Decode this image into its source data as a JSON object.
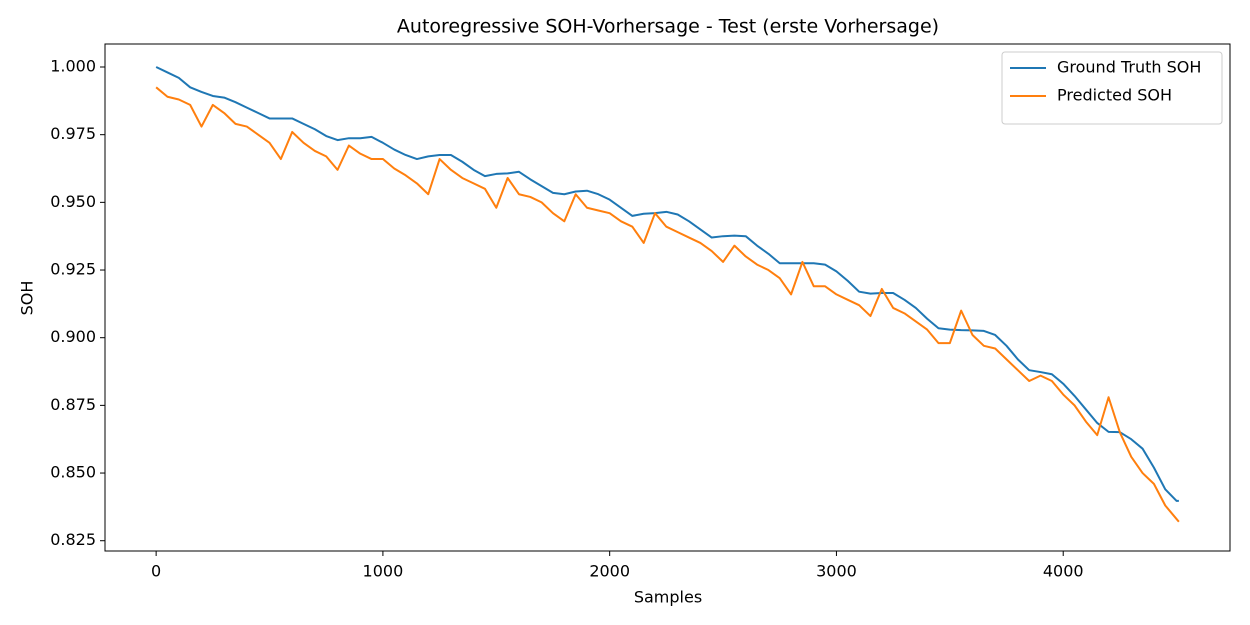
{
  "chart_data": {
    "type": "line",
    "title": "Autoregressive SOH-Vorhersage - Test (erste Vorhersage)",
    "x_label": "Samples",
    "y_label": "SOH",
    "x": [
      0,
      50,
      100,
      150,
      200,
      250,
      300,
      350,
      400,
      450,
      500,
      550,
      600,
      650,
      700,
      750,
      800,
      850,
      900,
      950,
      1000,
      1050,
      1100,
      1150,
      1200,
      1250,
      1300,
      1350,
      1400,
      1450,
      1500,
      1550,
      1600,
      1650,
      1700,
      1750,
      1800,
      1850,
      1900,
      1950,
      2000,
      2050,
      2100,
      2150,
      2200,
      2250,
      2300,
      2350,
      2400,
      2450,
      2500,
      2550,
      2600,
      2650,
      2700,
      2750,
      2800,
      2850,
      2900,
      2950,
      3000,
      3050,
      3100,
      3150,
      3200,
      3250,
      3300,
      3350,
      3400,
      3450,
      3500,
      3550,
      3600,
      3650,
      3700,
      3750,
      3800,
      3850,
      3900,
      3950,
      4000,
      4050,
      4100,
      4150,
      4200,
      4250,
      4300,
      4350,
      4400,
      4450,
      4500,
      4510
    ],
    "series": [
      {
        "name": "Ground Truth SOH",
        "color": "#1f77b4",
        "values": [
          1.0,
          0.998,
          0.996,
          0.9925,
          0.9908,
          0.9893,
          0.9887,
          0.987,
          0.985,
          0.983,
          0.981,
          0.981,
          0.981,
          0.979,
          0.977,
          0.9745,
          0.973,
          0.9737,
          0.9737,
          0.9742,
          0.972,
          0.9695,
          0.9675,
          0.966,
          0.967,
          0.9675,
          0.9675,
          0.965,
          0.962,
          0.9597,
          0.9605,
          0.9607,
          0.9613,
          0.9585,
          0.956,
          0.9535,
          0.953,
          0.954,
          0.9543,
          0.953,
          0.951,
          0.948,
          0.945,
          0.9458,
          0.946,
          0.9465,
          0.9455,
          0.943,
          0.94,
          0.937,
          0.9375,
          0.9377,
          0.9375,
          0.934,
          0.931,
          0.9275,
          0.9275,
          0.9275,
          0.9275,
          0.927,
          0.9245,
          0.921,
          0.917,
          0.9163,
          0.9165,
          0.9165,
          0.914,
          0.911,
          0.907,
          0.9035,
          0.903,
          0.9028,
          0.9027,
          0.9025,
          0.901,
          0.897,
          0.892,
          0.888,
          0.8873,
          0.8865,
          0.883,
          0.8785,
          0.8735,
          0.8685,
          0.8652,
          0.8651,
          0.8625,
          0.859,
          0.852,
          0.844,
          0.8397,
          0.8397
        ]
      },
      {
        "name": "Predicted SOH",
        "color": "#ff7f0e",
        "values": [
          0.9925,
          0.989,
          0.988,
          0.986,
          0.978,
          0.986,
          0.983,
          0.979,
          0.978,
          0.975,
          0.972,
          0.966,
          0.976,
          0.972,
          0.969,
          0.967,
          0.962,
          0.971,
          0.968,
          0.966,
          0.966,
          0.9625,
          0.96,
          0.957,
          0.953,
          0.966,
          0.962,
          0.959,
          0.957,
          0.955,
          0.948,
          0.959,
          0.953,
          0.952,
          0.95,
          0.946,
          0.943,
          0.953,
          0.948,
          0.947,
          0.946,
          0.943,
          0.941,
          0.935,
          0.946,
          0.941,
          0.939,
          0.937,
          0.935,
          0.932,
          0.928,
          0.934,
          0.93,
          0.927,
          0.925,
          0.922,
          0.916,
          0.928,
          0.919,
          0.919,
          0.916,
          0.914,
          0.912,
          0.908,
          0.918,
          0.911,
          0.909,
          0.906,
          0.903,
          0.898,
          0.898,
          0.91,
          0.901,
          0.897,
          0.896,
          0.892,
          0.888,
          0.884,
          0.886,
          0.884,
          0.879,
          0.875,
          0.869,
          0.864,
          0.878,
          0.865,
          0.856,
          0.85,
          0.846,
          0.838,
          0.833,
          0.832
        ]
      }
    ],
    "xlim": [
      -225.5,
      4735.5
    ],
    "xticks": [
      0,
      1000,
      2000,
      3000,
      4000
    ],
    "ylim": [
      0.8212,
      1.0085
    ],
    "yticks": [
      {
        "value": 0.825,
        "label": "0.825"
      },
      {
        "value": 0.85,
        "label": "0.850"
      },
      {
        "value": 0.875,
        "label": "0.875"
      },
      {
        "value": 0.9,
        "label": "0.900"
      },
      {
        "value": 0.925,
        "label": "0.925"
      },
      {
        "value": 0.95,
        "label": "0.950"
      },
      {
        "value": 0.975,
        "label": "0.975"
      },
      {
        "value": 1.0,
        "label": "1.000"
      }
    ],
    "legend": "upper right",
    "grid": false
  }
}
